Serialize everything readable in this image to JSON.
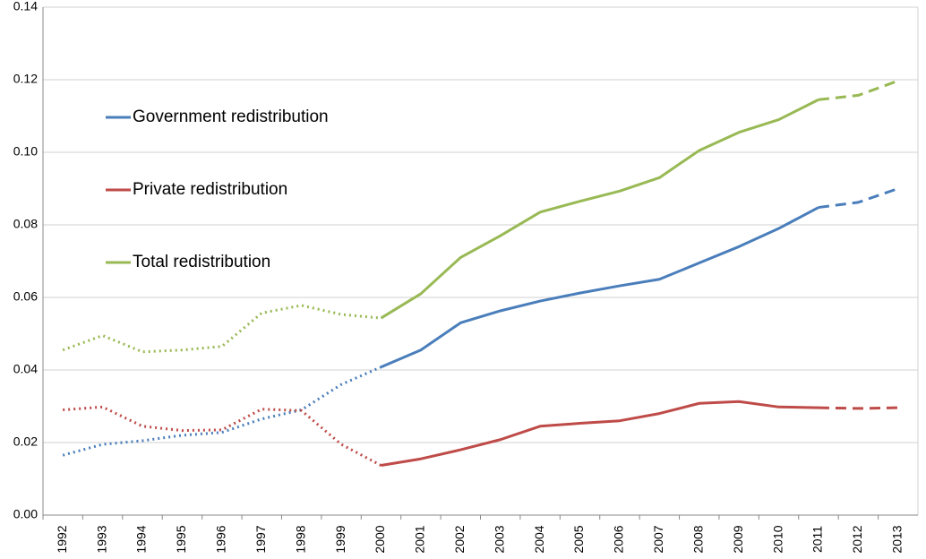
{
  "chart_data": {
    "type": "line",
    "categories": [
      "1992",
      "1993",
      "1994",
      "1995",
      "1996",
      "1997",
      "1998",
      "1999",
      "2000",
      "2001",
      "2002",
      "2003",
      "2004",
      "2005",
      "2006",
      "2007",
      "2008",
      "2009",
      "2010",
      "2011",
      "2012",
      "2013"
    ],
    "series": [
      {
        "name": "Government redistribution",
        "color": "#4a7ebb",
        "values": [
          0.0165,
          0.0195,
          0.0205,
          0.022,
          0.0228,
          0.0265,
          0.029,
          0.036,
          0.0408,
          0.0455,
          0.053,
          0.0563,
          0.059,
          0.0612,
          0.0632,
          0.065,
          0.0695,
          0.074,
          0.079,
          0.0848,
          0.0862,
          0.09
        ]
      },
      {
        "name": "Private redistribution",
        "color": "#be4b48",
        "values": [
          0.029,
          0.0298,
          0.0245,
          0.0233,
          0.0235,
          0.0292,
          0.0288,
          0.0195,
          0.0137,
          0.0155,
          0.018,
          0.0208,
          0.0245,
          0.0253,
          0.026,
          0.028,
          0.0308,
          0.0313,
          0.0298,
          0.0296,
          0.0294,
          0.0296
        ]
      },
      {
        "name": "Total redistribution",
        "color": "#98b954",
        "values": [
          0.0455,
          0.0495,
          0.045,
          0.0455,
          0.0465,
          0.0557,
          0.0578,
          0.0553,
          0.0543,
          0.061,
          0.071,
          0.077,
          0.0835,
          0.0865,
          0.0893,
          0.093,
          0.1005,
          0.1055,
          0.109,
          0.1145,
          0.1157,
          0.1197
        ]
      }
    ],
    "segment_styles": [
      {
        "until": "2000",
        "style": "dotted"
      },
      {
        "until": "2011",
        "style": "solid"
      },
      {
        "until": "2013",
        "style": "dashed"
      }
    ],
    "ylim": [
      0,
      0.14
    ],
    "yticks": [
      {
        "value": 0,
        "label": "0.00"
      },
      {
        "value": 0.02,
        "label": "0.02"
      },
      {
        "value": 0.04,
        "label": "0.04"
      },
      {
        "value": 0.06,
        "label": "0.06"
      },
      {
        "value": 0.08,
        "label": "0.08"
      },
      {
        "value": 0.1,
        "label": "0.10"
      },
      {
        "value": 0.12,
        "label": "0.12"
      },
      {
        "value": 0.14,
        "label": "0.14"
      }
    ],
    "grid": true,
    "legend": "upper left"
  }
}
